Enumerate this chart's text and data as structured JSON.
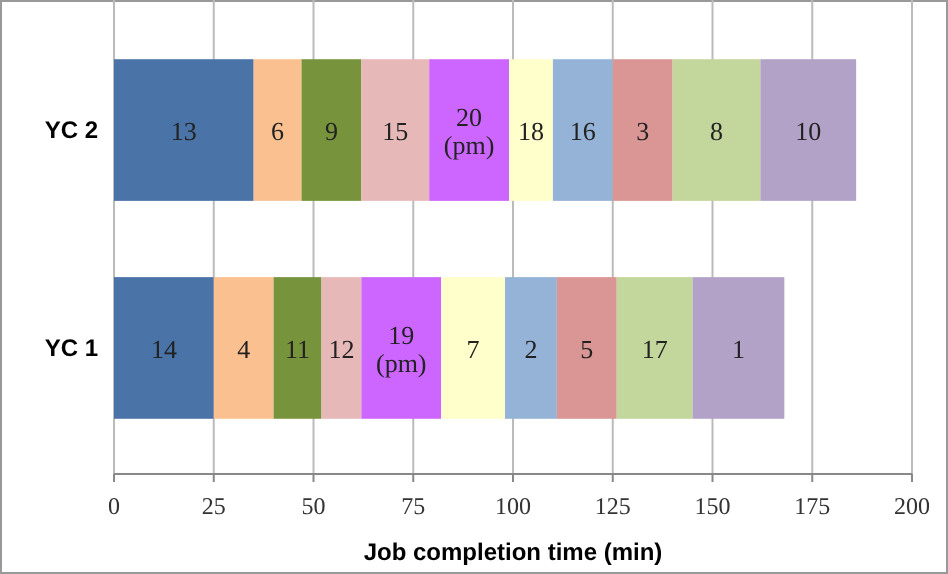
{
  "chart_data": {
    "type": "bar",
    "orientation": "horizontal",
    "stacked": true,
    "xlabel": "Job completion time (min)",
    "categories": [
      "YC 2",
      "YC 1"
    ],
    "xlim": [
      0,
      200
    ],
    "xticks": [
      0,
      25,
      50,
      75,
      100,
      125,
      150,
      175,
      200
    ],
    "grid": "x",
    "series": [
      {
        "color": "#4a73a8",
        "values": [
          35,
          25
        ]
      },
      {
        "color": "#fac090",
        "values": [
          12,
          15
        ]
      },
      {
        "color": "#77933c",
        "values": [
          15,
          12
        ]
      },
      {
        "color": "#e6b9b8",
        "values": [
          17,
          10
        ]
      },
      {
        "color": "#cc66ff",
        "values": [
          20,
          20
        ]
      },
      {
        "color": "#ffffcc",
        "values": [
          11,
          16
        ]
      },
      {
        "color": "#95b3d7",
        "values": [
          15,
          13
        ]
      },
      {
        "color": "#d99694",
        "values": [
          15,
          15
        ]
      },
      {
        "color": "#c3d69b",
        "values": [
          22,
          19
        ]
      },
      {
        "color": "#b3a2c7",
        "values": [
          24,
          23
        ]
      }
    ],
    "annotations": [
      "13",
      "6",
      "9",
      "15",
      "20 (pm)",
      "18",
      "16",
      "3",
      "8",
      "10",
      "14",
      "4",
      "11",
      "12",
      "19 (pm)",
      "7",
      "2",
      "5",
      "17",
      "1"
    ]
  }
}
